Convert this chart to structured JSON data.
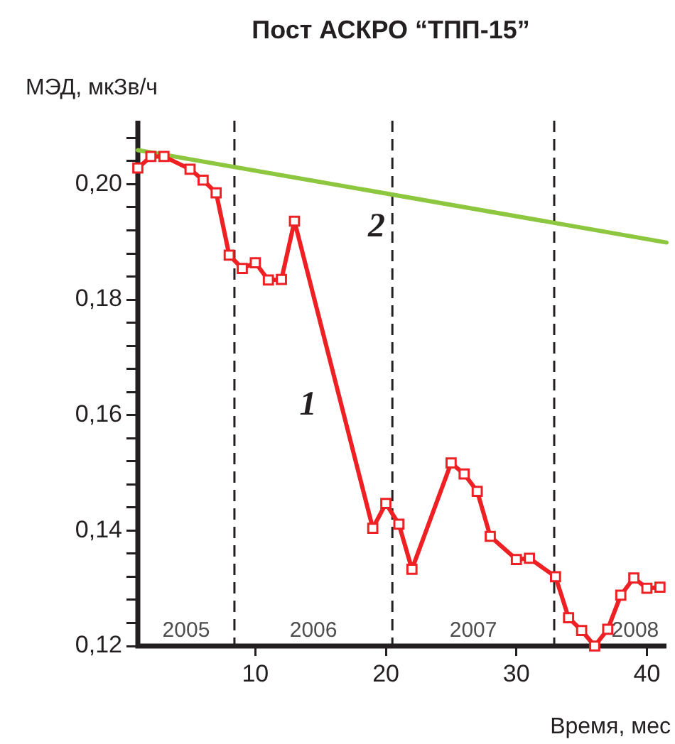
{
  "chart_data": {
    "type": "line",
    "title": "Пост АСКРО “ТПП-15”",
    "xlabel": "Время, мес",
    "ylabel": "МЭД, мкЗв/ч",
    "xlim": [
      1,
      41.5
    ],
    "xticks": [
      10,
      20,
      30,
      40
    ],
    "ylim": [
      0.12,
      0.211
    ],
    "yticks": [
      {
        "value": 0.12,
        "label": "0,12"
      },
      {
        "value": 0.124,
        "label": null
      },
      {
        "value": 0.128,
        "label": null
      },
      {
        "value": 0.132,
        "label": null
      },
      {
        "value": 0.136,
        "label": null
      },
      {
        "value": 0.14,
        "label": "0,14"
      },
      {
        "value": 0.144,
        "label": null
      },
      {
        "value": 0.148,
        "label": null
      },
      {
        "value": 0.152,
        "label": null
      },
      {
        "value": 0.156,
        "label": null
      },
      {
        "value": 0.16,
        "label": "0,16"
      },
      {
        "value": 0.164,
        "label": null
      },
      {
        "value": 0.168,
        "label": null
      },
      {
        "value": 0.172,
        "label": null
      },
      {
        "value": 0.176,
        "label": null
      },
      {
        "value": 0.18,
        "label": "0,18"
      },
      {
        "value": 0.184,
        "label": null
      },
      {
        "value": 0.188,
        "label": null
      },
      {
        "value": 0.192,
        "label": null
      },
      {
        "value": 0.196,
        "label": null
      },
      {
        "value": 0.2,
        "label": "0,20"
      },
      {
        "value": 0.204,
        "label": null
      },
      {
        "value": 0.208,
        "label": null
      }
    ],
    "grid": false,
    "legend": false,
    "series": [
      {
        "name": "1",
        "color": "#ee2024",
        "marker": "square",
        "line_style": "solid",
        "x": [
          1,
          2,
          3,
          5,
          6,
          7,
          8,
          9,
          10,
          11,
          12,
          13,
          19,
          20,
          21,
          22,
          25,
          26,
          27,
          28,
          30,
          31,
          33,
          34,
          35,
          36,
          37,
          38,
          39,
          40,
          41
        ],
        "values": [
          0.2028,
          0.2048,
          0.2048,
          0.2026,
          0.2007,
          0.1985,
          0.1877,
          0.1854,
          0.1864,
          0.1834,
          0.1835,
          0.1936,
          0.1404,
          0.1447,
          0.1411,
          0.1333,
          0.1517,
          0.1498,
          0.1468,
          0.139,
          0.135,
          0.1352,
          0.132,
          0.1249,
          0.1227,
          0.12,
          0.1229,
          0.1288,
          0.1318,
          0.13,
          0.1302
        ]
      },
      {
        "name": "2",
        "color": "#8dc63f",
        "marker": "none",
        "line_style": "solid",
        "x": [
          1,
          41.5
        ],
        "values": [
          0.2059,
          0.1899
        ]
      }
    ],
    "ref_lines": [
      {
        "axis": "x",
        "value": 8.4,
        "line_style": "dashed",
        "color": "#231f20"
      },
      {
        "axis": "x",
        "value": 20.5,
        "line_style": "dashed",
        "color": "#231f20"
      },
      {
        "axis": "x",
        "value": 32.9,
        "line_style": "dashed",
        "color": "#231f20"
      }
    ],
    "annotations": [
      "2005",
      "2006",
      "2007",
      "2008"
    ]
  }
}
